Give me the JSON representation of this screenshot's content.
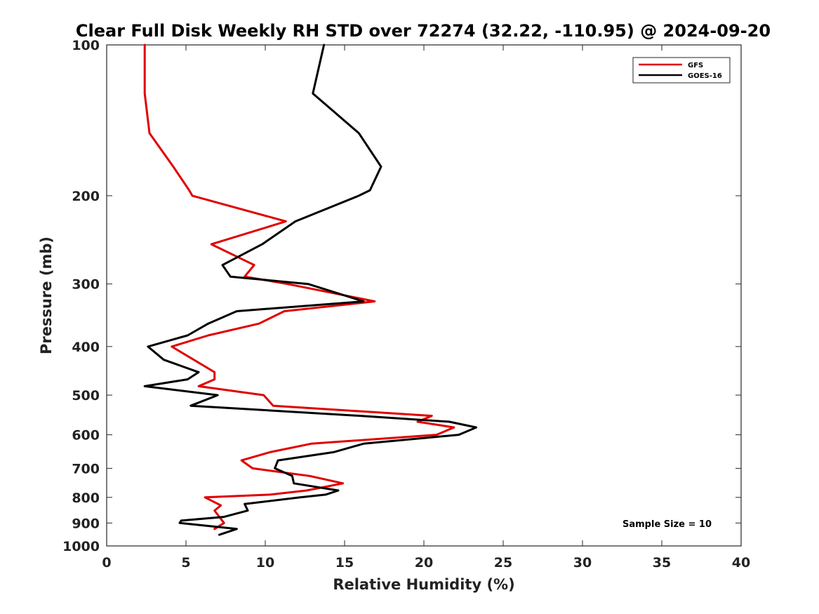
{
  "chart_data": {
    "type": "line",
    "title": "Clear Full Disk Weekly RH STD over 72274 (32.22, -110.95) @ 2024-09-20",
    "xlabel": "Relative Humidity (%)",
    "ylabel": "Pressure (mb)",
    "xlim": [
      0,
      40
    ],
    "ylim": [
      100,
      1000
    ],
    "yscale": "log",
    "y_reversed": true,
    "grid": false,
    "legend_position": "top-right",
    "x_ticks": [
      "0",
      "5",
      "10",
      "15",
      "20",
      "25",
      "30",
      "35",
      "40"
    ],
    "y_ticks": [
      "100",
      "200",
      "300",
      "400",
      "500",
      "600",
      "700",
      "800",
      "900",
      "1000"
    ],
    "annotation": "Sample Size = 10",
    "series": [
      {
        "name": "GFS",
        "color": "#e00000",
        "points": [
          [
            2.4,
            100
          ],
          [
            2.4,
            125
          ],
          [
            2.7,
            150
          ],
          [
            4.2,
            175
          ],
          [
            5.2,
            195
          ],
          [
            5.4,
            200
          ],
          [
            11.3,
            225
          ],
          [
            6.6,
            250
          ],
          [
            9.3,
            275
          ],
          [
            8.7,
            290
          ],
          [
            11.4,
            300
          ],
          [
            16.9,
            325
          ],
          [
            11.2,
            340
          ],
          [
            9.6,
            360
          ],
          [
            6.4,
            380
          ],
          [
            4.1,
            400
          ],
          [
            6.8,
            450
          ],
          [
            6.8,
            465
          ],
          [
            5.8,
            480
          ],
          [
            9.9,
            500
          ],
          [
            10.5,
            525
          ],
          [
            20.5,
            550
          ],
          [
            19.6,
            565
          ],
          [
            21.9,
            580
          ],
          [
            20.8,
            600
          ],
          [
            12.9,
            625
          ],
          [
            10.3,
            650
          ],
          [
            8.5,
            675
          ],
          [
            9.2,
            700
          ],
          [
            12.8,
            725
          ],
          [
            14.9,
            750
          ],
          [
            12.6,
            775
          ],
          [
            10.3,
            790
          ],
          [
            6.2,
            800
          ],
          [
            7.2,
            830
          ],
          [
            6.8,
            850
          ],
          [
            7.4,
            900
          ],
          [
            6.8,
            925
          ]
        ]
      },
      {
        "name": "GOES-16",
        "color": "#000000",
        "points": [
          [
            13.7,
            100
          ],
          [
            13.0,
            125
          ],
          [
            15.9,
            150
          ],
          [
            17.3,
            175
          ],
          [
            16.6,
            195
          ],
          [
            15.9,
            200
          ],
          [
            11.9,
            225
          ],
          [
            9.8,
            250
          ],
          [
            7.3,
            275
          ],
          [
            7.8,
            290
          ],
          [
            12.7,
            300
          ],
          [
            16.2,
            325
          ],
          [
            8.2,
            340
          ],
          [
            6.4,
            360
          ],
          [
            5.1,
            380
          ],
          [
            2.6,
            400
          ],
          [
            3.6,
            425
          ],
          [
            5.8,
            450
          ],
          [
            5.1,
            465
          ],
          [
            2.4,
            480
          ],
          [
            7.0,
            500
          ],
          [
            5.3,
            525
          ],
          [
            16.0,
            550
          ],
          [
            21.6,
            565
          ],
          [
            23.3,
            580
          ],
          [
            22.2,
            600
          ],
          [
            16.2,
            625
          ],
          [
            14.3,
            650
          ],
          [
            10.8,
            675
          ],
          [
            10.6,
            700
          ],
          [
            11.7,
            725
          ],
          [
            11.8,
            750
          ],
          [
            14.6,
            775
          ],
          [
            13.8,
            790
          ],
          [
            12.2,
            800
          ],
          [
            8.7,
            825
          ],
          [
            8.9,
            850
          ],
          [
            7.4,
            875
          ],
          [
            4.7,
            890
          ],
          [
            4.6,
            900
          ],
          [
            8.2,
            925
          ],
          [
            7.1,
            950
          ]
        ]
      }
    ]
  }
}
